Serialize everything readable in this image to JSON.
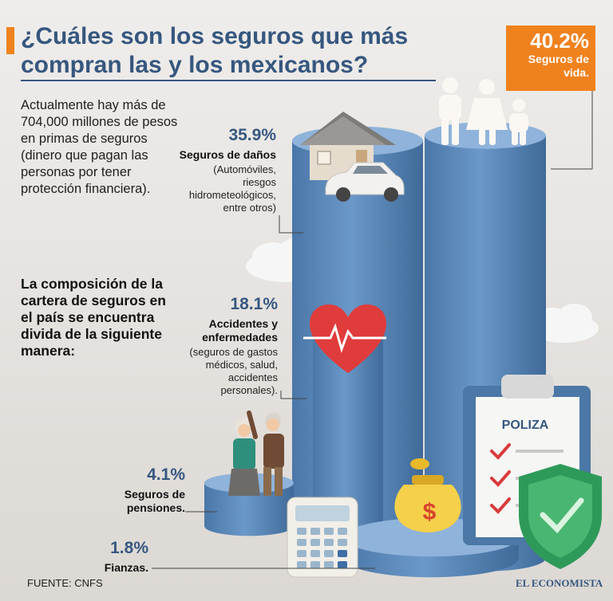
{
  "title": "¿Cuáles son los seguros que más compran las y los mexicanos?",
  "intro": "Actualmente hay más de 704,000 millones de pesos en primas de seguros (dinero que pagan las personas por tener protección financiera).",
  "subheading": "La composición de la cartera de seguros en el país se encuentra divida de la siguiente manera:",
  "source": "FUENTE: CNFS",
  "brand": "EL ECONOMISTA",
  "poliza_label": "POLIZA",
  "colors": {
    "accent": "#f0821e",
    "title": "#36577f",
    "cylinder": "#5d8cbf",
    "background": "#e9e6e3"
  },
  "chart_data": {
    "type": "bar",
    "title": "Composición de la cartera de seguros en México",
    "unit": "%",
    "categories": [
      "Seguros de vida.",
      "Seguros de daños",
      "Accidentes y enfermedades",
      "Seguros de pensiones.",
      "Fianzas."
    ],
    "values": [
      40.2,
      35.9,
      18.1,
      4.1,
      1.8
    ],
    "value_labels": [
      "40.2%",
      "35.9%",
      "18.1%",
      "4.1%",
      "1.8%"
    ],
    "descriptions": [
      "",
      "(Automóviles, riesgos hidrometeológicos, entre otros)",
      "(seguros de gastos médicos, salud, accidentes personales).",
      "",
      ""
    ]
  }
}
